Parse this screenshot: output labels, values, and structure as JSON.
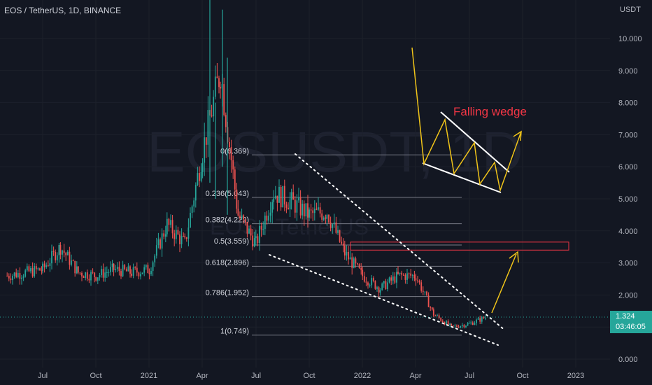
{
  "header": {
    "symbol_title": "EOS / TetherUS, 1D, BINANCE"
  },
  "watermark": {
    "ticker": "EOSUSDT, 1D",
    "name": "EOS / TetherUS"
  },
  "price_axis": {
    "unit": "USDT"
  },
  "last_price": {
    "value": "1.324",
    "countdown": "03:46:05"
  },
  "annotation": {
    "pattern_label": "Falling wedge"
  },
  "colors": {
    "background": "#131722",
    "up": "#26a69a",
    "down": "#ef5350",
    "arrow": "#f0c419",
    "pattern_label": "#f23645",
    "fib_line": "#787b86",
    "resistance_box": "#f23645"
  },
  "chart_data": {
    "type": "candlestick",
    "title": "EOS / TetherUS, 1D, BINANCE",
    "y_axis_ticks": [
      "0.000",
      "1.000",
      "2.000",
      "3.000",
      "4.000",
      "5.000",
      "6.000",
      "7.000",
      "8.000",
      "9.000",
      "10.000"
    ],
    "x_axis_ticks": [
      "Jul",
      "Oct",
      "2021",
      "Apr",
      "Jul",
      "Oct",
      "2022",
      "Apr",
      "Jul",
      "Oct",
      "2023"
    ],
    "ylim": [
      0,
      11.2
    ],
    "fib_levels": [
      {
        "ratio": "0",
        "price": 6.369,
        "label": "0(6.369)"
      },
      {
        "ratio": "0.236",
        "price": 5.043,
        "label": "0.236(5.043)"
      },
      {
        "ratio": "0.382",
        "price": 4.222,
        "label": "0.382(4.222)"
      },
      {
        "ratio": "0.5",
        "price": 3.559,
        "label": "0.5(3.559)"
      },
      {
        "ratio": "0.618",
        "price": 2.896,
        "label": "0.618(2.896)"
      },
      {
        "ratio": "0.786",
        "price": 1.952,
        "label": "0.786(1.952)"
      },
      {
        "ratio": "1",
        "price": 0.749,
        "label": "1(0.749)"
      }
    ],
    "price_series_approx": [
      {
        "date": "2020-05",
        "close": 2.6
      },
      {
        "date": "2020-07",
        "close": 2.8
      },
      {
        "date": "2020-08",
        "close": 3.5
      },
      {
        "date": "2020-09",
        "close": 2.7
      },
      {
        "date": "2020-10",
        "close": 2.6
      },
      {
        "date": "2020-11",
        "close": 2.8
      },
      {
        "date": "2020-12",
        "close": 2.7
      },
      {
        "date": "2021-01",
        "close": 2.8
      },
      {
        "date": "2021-02",
        "close": 4.2
      },
      {
        "date": "2021-03",
        "close": 3.6
      },
      {
        "date": "2021-04",
        "close": 6.5
      },
      {
        "date": "2021-05",
        "close": 9.0
      },
      {
        "date": "2021-06",
        "close": 4.5
      },
      {
        "date": "2021-07",
        "close": 3.6
      },
      {
        "date": "2021-08",
        "close": 5.2
      },
      {
        "date": "2021-09",
        "close": 4.9
      },
      {
        "date": "2021-10",
        "close": 4.5
      },
      {
        "date": "2021-11",
        "close": 4.6
      },
      {
        "date": "2021-12",
        "close": 3.3
      },
      {
        "date": "2022-01",
        "close": 2.6
      },
      {
        "date": "2022-02",
        "close": 2.2
      },
      {
        "date": "2022-03",
        "close": 2.6
      },
      {
        "date": "2022-04",
        "close": 2.6
      },
      {
        "date": "2022-05",
        "close": 1.4
      },
      {
        "date": "2022-06",
        "close": 1.0
      },
      {
        "date": "2022-07",
        "close": 1.1
      },
      {
        "date": "2022-08",
        "close": 1.32
      }
    ],
    "resistance_zone": [
      3.4,
      3.65
    ]
  }
}
